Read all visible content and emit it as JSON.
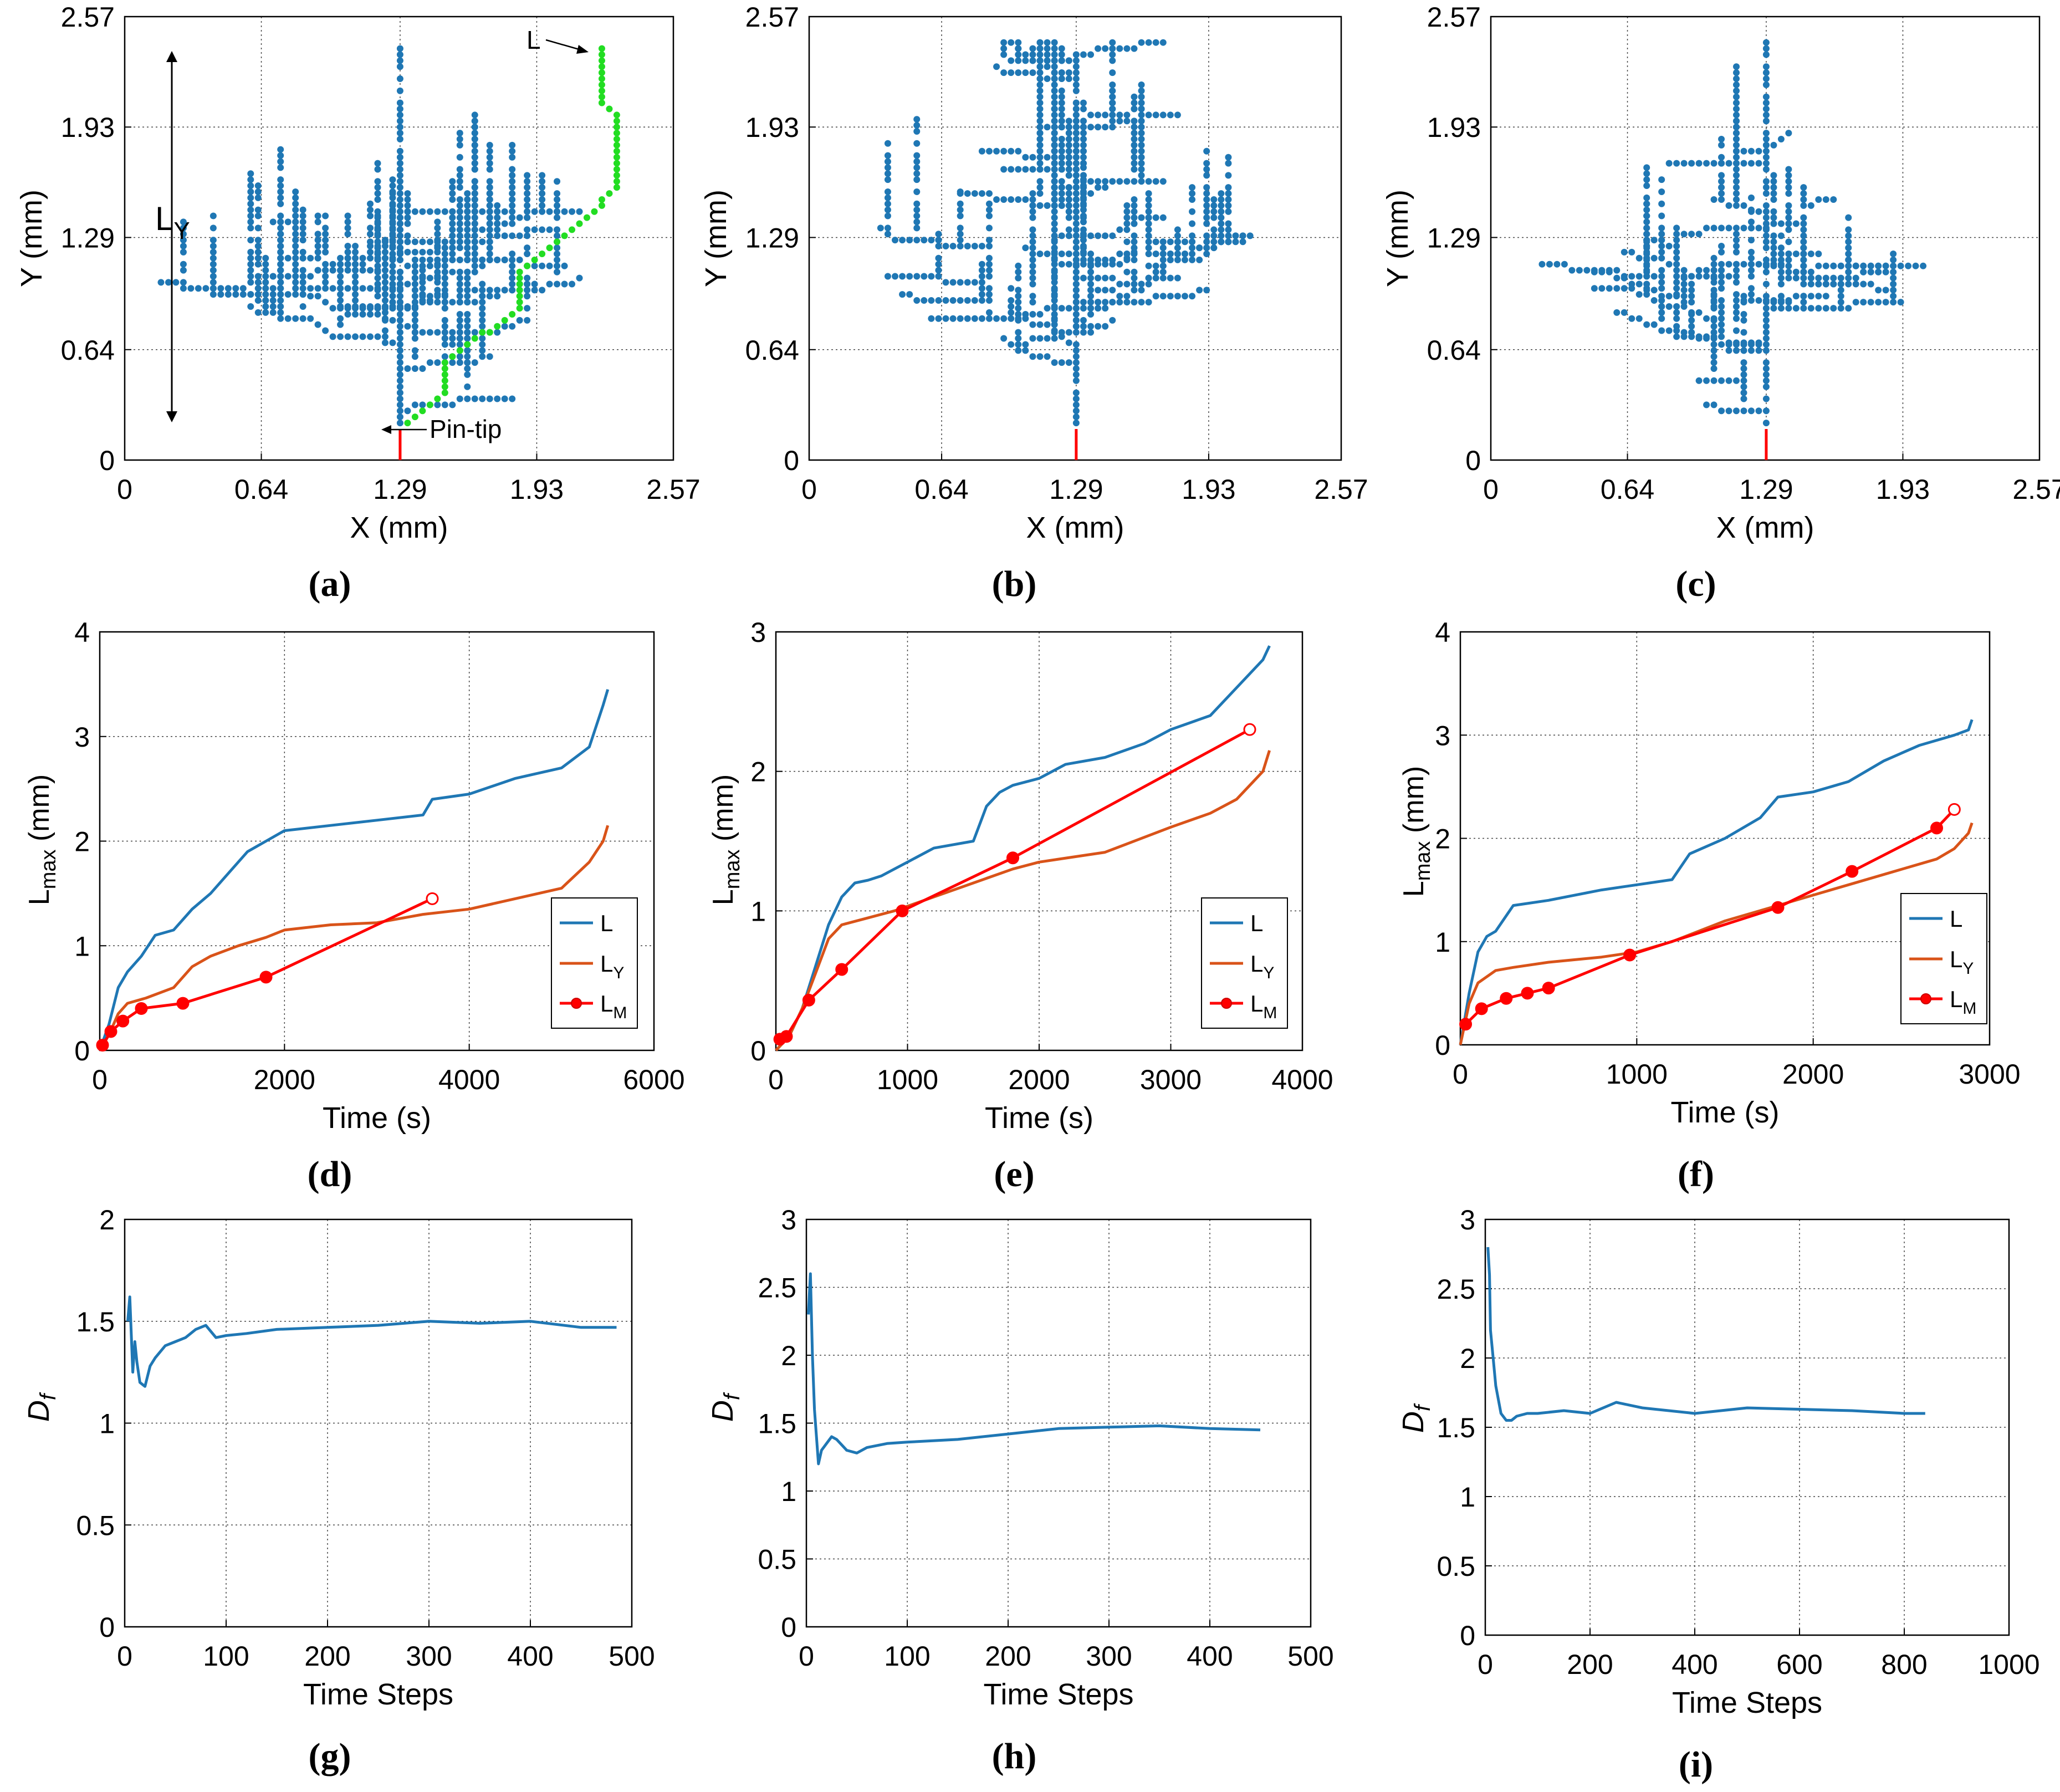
{
  "figure": {
    "panel_labels": {
      "a": "(a)",
      "b": "(b)",
      "c": "(c)",
      "d": "(d)",
      "e": "(e)",
      "f": "(f)",
      "g": "(g)",
      "h": "(h)",
      "i": "(i)"
    },
    "annotations": {
      "L": "L",
      "LY_main": "L",
      "LY_sub": "Y",
      "pin_tip": "Pin-tip"
    },
    "legend": {
      "L": "L",
      "LY_main": "L",
      "LY_sub": "Y",
      "LM_main": "L",
      "LM_sub": "M"
    },
    "labels": {
      "lmax_main": "L",
      "lmax_sub": "max",
      "lmax_unit": " (mm)",
      "df_main": "D",
      "df_sub": "f"
    }
  },
  "colors": {
    "blue": "#1f77b4",
    "orange": "#d95319",
    "red": "#ff0000",
    "green": "#22dd22",
    "axis": "#000000",
    "grid": "#444444"
  },
  "chart_data": [
    {
      "id": "a",
      "type": "scatter",
      "xlabel": "X (mm)",
      "ylabel": "Y (mm)",
      "xlim": [
        0,
        2.57
      ],
      "ylim": [
        0,
        2.57
      ],
      "xticks": [
        0,
        0.64,
        1.29,
        1.93,
        2.57
      ],
      "xticklabels": [
        "0",
        "0.64",
        "1.29",
        "1.93",
        "2.57"
      ],
      "yticks": [
        0,
        0.64,
        1.29,
        1.93,
        2.57
      ],
      "yticklabels": [
        "0",
        "0.64",
        "1.29",
        "1.93",
        "2.57"
      ],
      "trunk_start": [
        1.29,
        0.18
      ],
      "seed": 11
    },
    {
      "id": "b",
      "type": "scatter",
      "xlabel": "X (mm)",
      "ylabel": "Y (mm)",
      "xlim": [
        0,
        2.57
      ],
      "ylim": [
        0,
        2.57
      ],
      "xticks": [
        0,
        0.64,
        1.29,
        1.93,
        2.57
      ],
      "xticklabels": [
        "0",
        "0.64",
        "1.29",
        "1.93",
        "2.57"
      ],
      "yticks": [
        0,
        0.64,
        1.29,
        1.93,
        2.57
      ],
      "yticklabels": [
        "0",
        "0.64",
        "1.29",
        "1.93",
        "2.57"
      ],
      "trunk_start": [
        1.29,
        0.18
      ],
      "seed": 23
    },
    {
      "id": "c",
      "type": "scatter",
      "xlabel": "X (mm)",
      "ylabel": "Y (mm)",
      "xlim": [
        0,
        2.57
      ],
      "ylim": [
        0,
        2.57
      ],
      "xticks": [
        0,
        0.64,
        1.29,
        1.93,
        2.57
      ],
      "xticklabels": [
        "0",
        "0.64",
        "1.29",
        "1.93",
        "2.57"
      ],
      "yticks": [
        0,
        0.64,
        1.29,
        1.93,
        2.57
      ],
      "yticklabels": [
        "0",
        "0.64",
        "1.29",
        "1.93",
        "2.57"
      ],
      "trunk_start": [
        1.29,
        0.18
      ],
      "seed": 37
    },
    {
      "id": "d",
      "type": "line",
      "xlabel": "Time (s)",
      "ylabel": "L_max (mm)",
      "xlim": [
        0,
        6000
      ],
      "ylim": [
        0,
        4
      ],
      "xticks": [
        0,
        2000,
        4000,
        6000
      ],
      "xticklabels": [
        "0",
        "2000",
        "4000",
        "6000"
      ],
      "yticks": [
        0,
        1,
        2,
        3,
        4
      ],
      "yticklabels": [
        "0",
        "1",
        "2",
        "3",
        "4"
      ],
      "series": [
        {
          "name": "L",
          "x": [
            0,
            100,
            200,
            300,
            450,
            600,
            800,
            1000,
            1200,
            1400,
            1600,
            1800,
            2000,
            2500,
            3000,
            3500,
            3600,
            4000,
            4500,
            5000,
            5300,
            5450,
            5500
          ],
          "y": [
            0,
            0.25,
            0.6,
            0.75,
            0.9,
            1.1,
            1.15,
            1.35,
            1.5,
            1.7,
            1.9,
            2.0,
            2.1,
            2.15,
            2.2,
            2.25,
            2.4,
            2.45,
            2.6,
            2.7,
            2.9,
            3.3,
            3.45
          ]
        },
        {
          "name": "L_Y",
          "x": [
            0,
            100,
            200,
            300,
            500,
            800,
            1000,
            1200,
            1500,
            1800,
            2000,
            2500,
            3000,
            3500,
            4000,
            4500,
            5000,
            5300,
            5450,
            5500
          ],
          "y": [
            0,
            0.15,
            0.35,
            0.45,
            0.5,
            0.6,
            0.8,
            0.9,
            1.0,
            1.08,
            1.15,
            1.2,
            1.22,
            1.3,
            1.35,
            1.45,
            1.55,
            1.8,
            2.0,
            2.15
          ]
        },
        {
          "name": "L_M",
          "x": [
            30,
            120,
            250,
            450,
            900,
            1800,
            3600
          ],
          "y": [
            0.05,
            0.18,
            0.28,
            0.4,
            0.45,
            0.7,
            1.45
          ],
          "markers": true
        }
      ],
      "legend": "lower-right"
    },
    {
      "id": "e",
      "type": "line",
      "xlabel": "Time (s)",
      "ylabel": "L_max (mm)",
      "xlim": [
        0,
        4000
      ],
      "ylim": [
        0,
        3
      ],
      "xticks": [
        0,
        1000,
        2000,
        3000,
        4000
      ],
      "xticklabels": [
        "0",
        "1000",
        "2000",
        "3000",
        "4000"
      ],
      "yticks": [
        0,
        1,
        2,
        3
      ],
      "yticklabels": [
        "0",
        "1",
        "2",
        "3"
      ],
      "series": [
        {
          "name": "L",
          "x": [
            0,
            100,
            200,
            300,
            400,
            500,
            600,
            700,
            800,
            900,
            1000,
            1200,
            1500,
            1600,
            1700,
            1800,
            2000,
            2200,
            2500,
            2800,
            3000,
            3300,
            3500,
            3700,
            3750
          ],
          "y": [
            0,
            0.1,
            0.3,
            0.6,
            0.9,
            1.1,
            1.2,
            1.22,
            1.25,
            1.3,
            1.35,
            1.45,
            1.5,
            1.75,
            1.85,
            1.9,
            1.95,
            2.05,
            2.1,
            2.2,
            2.3,
            2.4,
            2.6,
            2.8,
            2.9
          ]
        },
        {
          "name": "L_Y",
          "x": [
            0,
            100,
            200,
            300,
            400,
            500,
            700,
            900,
            1200,
            1500,
            1800,
            2000,
            2500,
            3000,
            3300,
            3500,
            3700,
            3750
          ],
          "y": [
            0,
            0.1,
            0.3,
            0.55,
            0.8,
            0.9,
            0.95,
            1.0,
            1.1,
            1.2,
            1.3,
            1.35,
            1.42,
            1.6,
            1.7,
            1.8,
            2.0,
            2.15
          ]
        },
        {
          "name": "L_M",
          "x": [
            30,
            80,
            250,
            500,
            960,
            1800,
            3600
          ],
          "y": [
            0.08,
            0.1,
            0.36,
            0.58,
            1.0,
            1.38,
            2.3
          ],
          "markers": true
        }
      ],
      "legend": "lower-right"
    },
    {
      "id": "f",
      "type": "line",
      "xlabel": "Time (s)",
      "ylabel": "L_max (mm)",
      "xlim": [
        0,
        3000
      ],
      "ylim": [
        0,
        4
      ],
      "xticks": [
        0,
        1000,
        2000,
        3000
      ],
      "xticklabels": [
        "0",
        "1000",
        "2000",
        "3000"
      ],
      "yticks": [
        0,
        1,
        2,
        3,
        4
      ],
      "yticklabels": [
        "0",
        "1",
        "2",
        "3",
        "4"
      ],
      "series": [
        {
          "name": "L",
          "x": [
            0,
            50,
            100,
            150,
            200,
            300,
            500,
            800,
            1000,
            1200,
            1300,
            1500,
            1700,
            1800,
            2000,
            2200,
            2400,
            2600,
            2700,
            2800,
            2880,
            2900
          ],
          "y": [
            0,
            0.5,
            0.9,
            1.05,
            1.1,
            1.35,
            1.4,
            1.5,
            1.55,
            1.6,
            1.85,
            2.0,
            2.2,
            2.4,
            2.45,
            2.55,
            2.75,
            2.9,
            2.95,
            3.0,
            3.05,
            3.15
          ]
        },
        {
          "name": "L_Y",
          "x": [
            0,
            50,
            100,
            200,
            300,
            500,
            800,
            1000,
            1200,
            1500,
            1800,
            2000,
            2200,
            2500,
            2700,
            2800,
            2880,
            2900
          ],
          "y": [
            0,
            0.4,
            0.6,
            0.72,
            0.75,
            0.8,
            0.85,
            0.9,
            1.0,
            1.2,
            1.35,
            1.45,
            1.55,
            1.7,
            1.8,
            1.9,
            2.05,
            2.15
          ]
        },
        {
          "name": "L_M",
          "x": [
            30,
            120,
            260,
            380,
            500,
            960,
            1800,
            2220,
            2700,
            2800
          ],
          "y": [
            0.2,
            0.35,
            0.45,
            0.5,
            0.55,
            0.87,
            1.33,
            1.68,
            2.1,
            2.28
          ],
          "markers": true
        }
      ],
      "legend": "lower-right"
    },
    {
      "id": "g",
      "type": "line",
      "xlabel": "Time Steps",
      "ylabel": "D_f",
      "xlim": [
        0,
        500
      ],
      "ylim": [
        0,
        2
      ],
      "xticks": [
        0,
        100,
        200,
        300,
        400,
        500
      ],
      "xticklabels": [
        "0",
        "100",
        "200",
        "300",
        "400",
        "500"
      ],
      "yticks": [
        0,
        0.5,
        1,
        1.5,
        2
      ],
      "yticklabels": [
        "0",
        "0.5",
        "1",
        "1.5",
        "2"
      ],
      "series": [
        {
          "name": "D_f",
          "x": [
            3,
            5,
            8,
            10,
            12,
            15,
            20,
            25,
            30,
            40,
            50,
            60,
            70,
            80,
            90,
            100,
            120,
            150,
            200,
            250,
            300,
            350,
            400,
            450,
            485
          ],
          "y": [
            1.5,
            1.62,
            1.25,
            1.4,
            1.3,
            1.2,
            1.18,
            1.28,
            1.32,
            1.38,
            1.4,
            1.42,
            1.46,
            1.48,
            1.42,
            1.43,
            1.44,
            1.46,
            1.47,
            1.48,
            1.5,
            1.49,
            1.5,
            1.47,
            1.47
          ]
        }
      ]
    },
    {
      "id": "h",
      "type": "line",
      "xlabel": "Time Steps",
      "ylabel": "D_f",
      "xlim": [
        0,
        500
      ],
      "ylim": [
        0,
        3
      ],
      "xticks": [
        0,
        100,
        200,
        300,
        400,
        500
      ],
      "xticklabels": [
        "0",
        "100",
        "200",
        "300",
        "400",
        "500"
      ],
      "yticks": [
        0,
        0.5,
        1,
        1.5,
        2,
        2.5,
        3
      ],
      "yticklabels": [
        "0",
        "0.5",
        "1",
        "1.5",
        "2",
        "2.5",
        "3"
      ],
      "series": [
        {
          "name": "D_f",
          "x": [
            2,
            4,
            6,
            8,
            10,
            12,
            15,
            20,
            25,
            30,
            40,
            50,
            60,
            80,
            100,
            150,
            200,
            250,
            300,
            350,
            400,
            450
          ],
          "y": [
            2.3,
            2.6,
            2.0,
            1.6,
            1.4,
            1.2,
            1.3,
            1.35,
            1.4,
            1.38,
            1.3,
            1.28,
            1.32,
            1.35,
            1.36,
            1.38,
            1.42,
            1.46,
            1.47,
            1.48,
            1.46,
            1.45
          ]
        }
      ]
    },
    {
      "id": "i",
      "type": "line",
      "xlabel": "Time Steps",
      "ylabel": "D_f",
      "xlim": [
        0,
        1000
      ],
      "ylim": [
        0,
        3
      ],
      "xticks": [
        0,
        200,
        400,
        600,
        800,
        1000
      ],
      "xticklabels": [
        "0",
        "200",
        "400",
        "600",
        "800",
        "1000"
      ],
      "yticks": [
        0,
        0.5,
        1,
        1.5,
        2,
        2.5,
        3
      ],
      "yticklabels": [
        "0",
        "0.5",
        "1",
        "1.5",
        "2",
        "2.5",
        "3"
      ],
      "series": [
        {
          "name": "D_f",
          "x": [
            5,
            8,
            10,
            15,
            20,
            25,
            30,
            40,
            50,
            60,
            80,
            100,
            150,
            200,
            250,
            300,
            400,
            500,
            600,
            700,
            800,
            840
          ],
          "y": [
            2.8,
            2.6,
            2.2,
            2.0,
            1.8,
            1.7,
            1.6,
            1.55,
            1.55,
            1.58,
            1.6,
            1.6,
            1.62,
            1.6,
            1.68,
            1.64,
            1.6,
            1.64,
            1.63,
            1.62,
            1.6,
            1.6
          ]
        }
      ]
    }
  ]
}
